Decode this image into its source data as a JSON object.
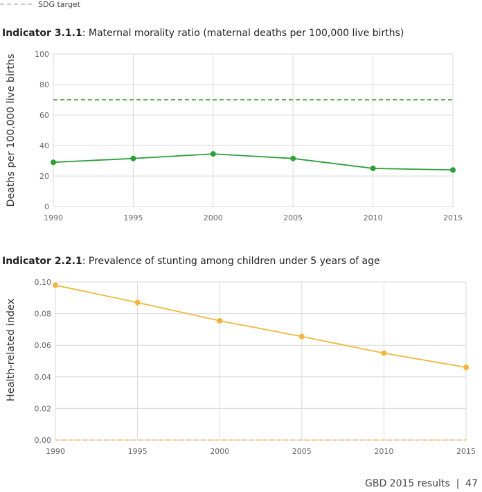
{
  "legend": {
    "label": "SDG target"
  },
  "footer": "GBD 2015 results  |  47",
  "colors": {
    "green": "#2e9e3a",
    "green_target": "#3b8f2e",
    "orange": "#f0b73c",
    "orange_target": "#f3b766",
    "grid": "#d9d9d9"
  },
  "chart_data": [
    {
      "type": "line",
      "title_bold": "Indicator 3.1.1",
      "title_rest": ": Maternal morality ratio (maternal deaths per 100,000 live births)",
      "ylabel": "Deaths per 100,000 live births",
      "xlabel": "",
      "x": [
        1990,
        1995,
        2000,
        2005,
        2010,
        2015
      ],
      "x_tick_labels": [
        "1990",
        "1995",
        "2000",
        "2005",
        "2010",
        "2015"
      ],
      "y_ticks": [
        0,
        20,
        40,
        60,
        80,
        100
      ],
      "y_tick_labels": [
        "0",
        "20",
        "40",
        "60",
        "80",
        "100"
      ],
      "ylim": [
        0,
        100
      ],
      "grid": true,
      "series": [
        {
          "values": [
            29,
            31.5,
            34.5,
            31.5,
            25,
            24
          ]
        }
      ],
      "target": 70
    },
    {
      "type": "line",
      "title_bold": "Indicator 2.2.1",
      "title_rest": ": Prevalence of stunting among children under 5 years of age",
      "ylabel": "Health-related index",
      "xlabel": "",
      "x": [
        1990,
        1995,
        2000,
        2005,
        2010,
        2015
      ],
      "x_tick_labels": [
        "1990",
        "1995",
        "2000",
        "2005",
        "2010",
        "2015"
      ],
      "y_ticks": [
        0,
        0.02,
        0.04,
        0.06,
        0.08,
        0.1
      ],
      "y_tick_labels": [
        "0.00",
        "0.02",
        "0.04",
        "0.06",
        "0.08",
        "0.10"
      ],
      "ylim": [
        0,
        0.1
      ],
      "grid": true,
      "series": [
        {
          "values": [
            0.098,
            0.087,
            0.0755,
            0.0655,
            0.055,
            0.046
          ]
        }
      ],
      "target": 0
    }
  ]
}
